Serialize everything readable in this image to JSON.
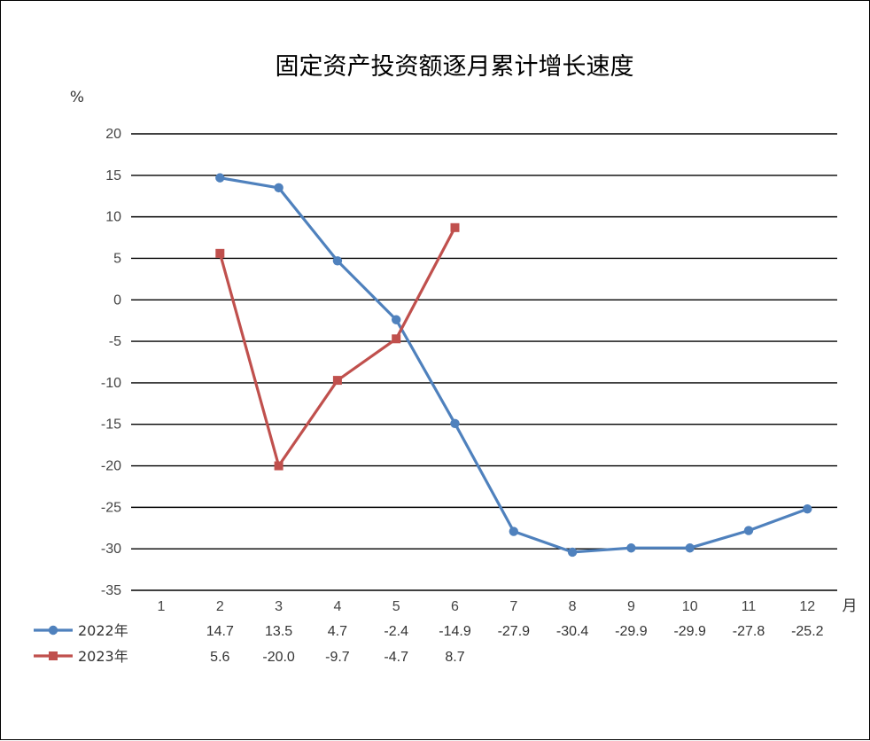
{
  "chart_data": {
    "type": "line",
    "title": "固定资产投资额逐月累计增长速度",
    "ylabel": "%",
    "xlabel": "月",
    "categories": [
      "1",
      "2",
      "3",
      "4",
      "5",
      "6",
      "7",
      "8",
      "9",
      "10",
      "11",
      "12"
    ],
    "ylim": [
      -35,
      20
    ],
    "yticks": [
      20,
      15,
      10,
      5,
      0,
      -5,
      -10,
      -15,
      -20,
      -25,
      -30,
      -35
    ],
    "grid": true,
    "legend": "bottom-left data table",
    "series": [
      {
        "name": "2022年",
        "color": "#4f81bd",
        "marker": "circle",
        "values": [
          null,
          14.7,
          13.5,
          4.7,
          -2.4,
          -14.9,
          -27.9,
          -30.4,
          -29.9,
          -29.9,
          -27.8,
          -25.2
        ],
        "labels": [
          "",
          "14.7",
          "13.5",
          "4.7",
          "-2.4",
          "-14.9",
          "-27.9",
          "-30.4",
          "-29.9",
          "-29.9",
          "-27.8",
          "-25.2"
        ]
      },
      {
        "name": "2023年",
        "color": "#c0504d",
        "marker": "square",
        "values": [
          null,
          5.6,
          -20.0,
          -9.7,
          -4.7,
          8.7,
          null,
          null,
          null,
          null,
          null,
          null
        ],
        "labels": [
          "",
          "5.6",
          "-20.0",
          "-9.7",
          "-4.7",
          "8.7",
          "",
          "",
          "",
          "",
          "",
          ""
        ]
      }
    ]
  }
}
